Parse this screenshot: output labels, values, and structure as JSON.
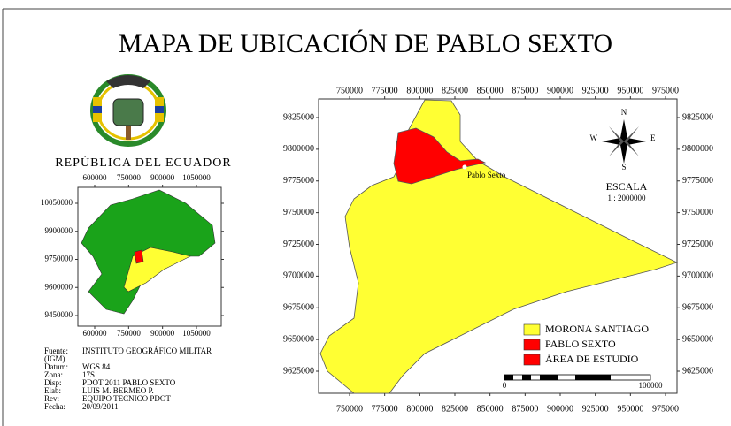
{
  "title": "MAPA DE UBICACIÓN DE PABLO SEXTO",
  "country_label": "REPÚBLICA DEL ECUADOR",
  "inset_map": {
    "xticks": [
      600000,
      750000,
      900000,
      1050000
    ],
    "yticks": [
      10050000,
      9900000,
      9750000,
      9600000,
      9450000
    ],
    "colors": {
      "country": "#1aa31a",
      "province": "#ffff33",
      "parish": "#ff0000"
    }
  },
  "main_map": {
    "xticks": [
      750000,
      775000,
      800000,
      825000,
      850000,
      875000,
      900000,
      925000,
      950000,
      975000
    ],
    "yticks": [
      9825000,
      9800000,
      9775000,
      9750000,
      9725000,
      9700000,
      9675000,
      9650000,
      9625000
    ],
    "place_label": "Pablo Sexto",
    "compass": {
      "north": "N",
      "south": "S",
      "east": "E",
      "west": "W"
    },
    "scale": {
      "heading": "ESCALA",
      "ratio": "1 : 2000000",
      "bar_start": 0,
      "bar_end": 100000
    }
  },
  "legend": [
    {
      "name": "MORONA SANTIAGO",
      "color": "#ffff33"
    },
    {
      "name": "PABLO SEXTO",
      "color": "#ff0000"
    },
    {
      "name": "ÁREA DE ESTUDIO",
      "color": "#ff0000"
    }
  ],
  "credits": {
    "fuente": {
      "label": "Fuente:",
      "value": "INSTITUTO GEOGRÁFICO MILITAR",
      "continuation": "(IGM)"
    },
    "datum": {
      "label": "Datum:",
      "value": "WGS 84"
    },
    "zona": {
      "label": "Zona:",
      "value": "17S"
    },
    "disp": {
      "label": "Disp:",
      "value": "PDOT 2011 PABLO SEXTO"
    },
    "elab": {
      "label": "Elab:",
      "value": "LUIS M. BERMEO P."
    },
    "rev": {
      "label": "Rev:",
      "value": "EQUIPO TECNICO PDOT"
    },
    "fecha": {
      "label": "Fecha:",
      "value": "20/09/2011"
    }
  }
}
